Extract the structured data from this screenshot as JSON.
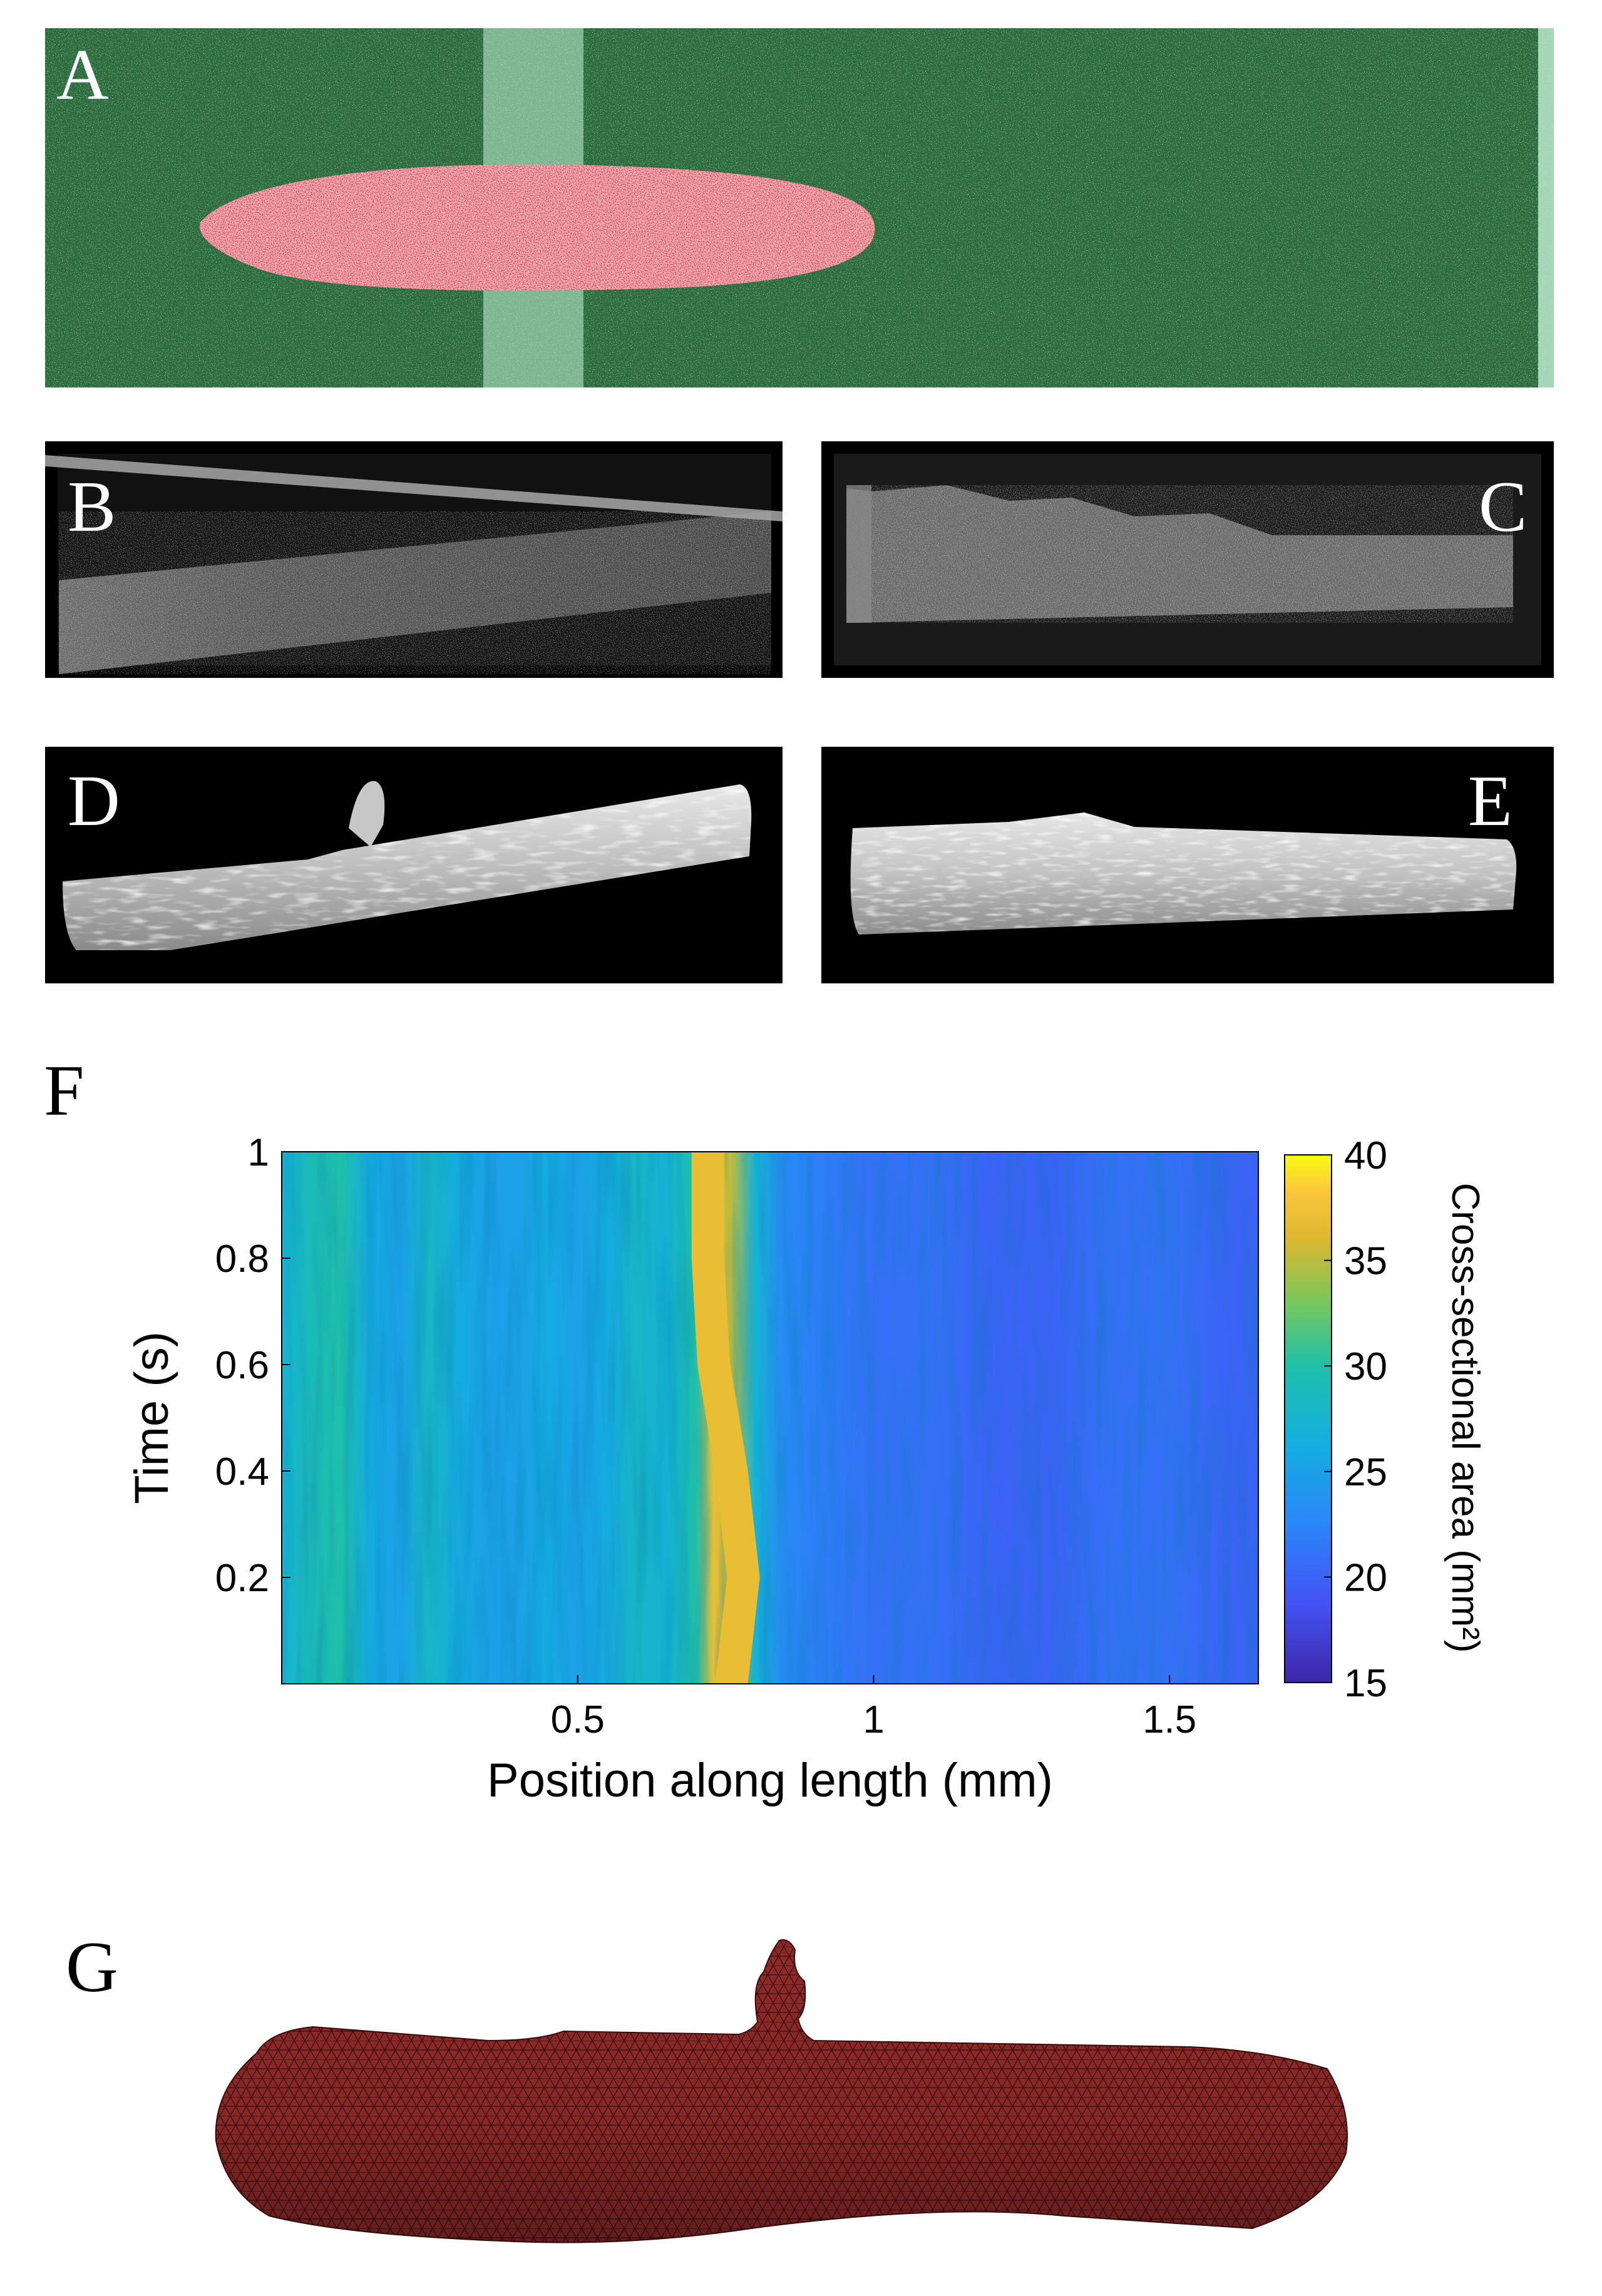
{
  "panels": {
    "a": {
      "label": "A"
    },
    "b": {
      "label": "B"
    },
    "c": {
      "label": "C"
    },
    "d": {
      "label": "D"
    },
    "e": {
      "label": "E"
    },
    "f": {
      "label": "F"
    },
    "g": {
      "label": "G"
    }
  },
  "chart_data": {
    "type": "heatmap",
    "xlabel": "Position along length (mm)",
    "ylabel": "Time (s)",
    "colorbar_label": "Cross-sectional area (mm²)",
    "x_ticks": [
      0.5,
      1,
      1.5
    ],
    "x_tick_labels": [
      "0.5",
      "1",
      "1.5"
    ],
    "y_ticks": [
      0.2,
      0.4,
      0.6,
      0.8,
      1
    ],
    "y_tick_labels": [
      "0.2",
      "0.4",
      "0.6",
      "0.8",
      "1"
    ],
    "colorbar_ticks": [
      15,
      20,
      25,
      30,
      35,
      40
    ],
    "colorbar_tick_labels": [
      "15",
      "20",
      "25",
      "30",
      "35",
      "40"
    ],
    "xlim": [
      0,
      1.65
    ],
    "ylim": [
      0,
      1
    ],
    "clim": [
      15,
      40
    ],
    "colormap": "parula",
    "grid": false,
    "profile": {
      "x": [
        0.0,
        0.05,
        0.1,
        0.15,
        0.2,
        0.25,
        0.3,
        0.35,
        0.4,
        0.45,
        0.5,
        0.55,
        0.6,
        0.65,
        0.7,
        0.73,
        0.76,
        0.8,
        0.85,
        0.9,
        1.0,
        1.1,
        1.2,
        1.3,
        1.4,
        1.5,
        1.6,
        1.65
      ],
      "area": [
        27,
        29,
        30,
        26,
        25,
        28,
        26,
        25,
        25,
        26,
        25,
        26,
        28,
        27,
        30,
        37,
        35,
        27,
        23,
        22,
        21,
        21,
        20,
        20,
        21,
        21,
        20,
        20
      ]
    },
    "ridge": {
      "time": [
        0.0,
        0.2,
        0.4,
        0.6,
        0.8,
        1.0
      ],
      "position": [
        0.76,
        0.78,
        0.76,
        0.73,
        0.72,
        0.72
      ],
      "area": 37
    }
  }
}
